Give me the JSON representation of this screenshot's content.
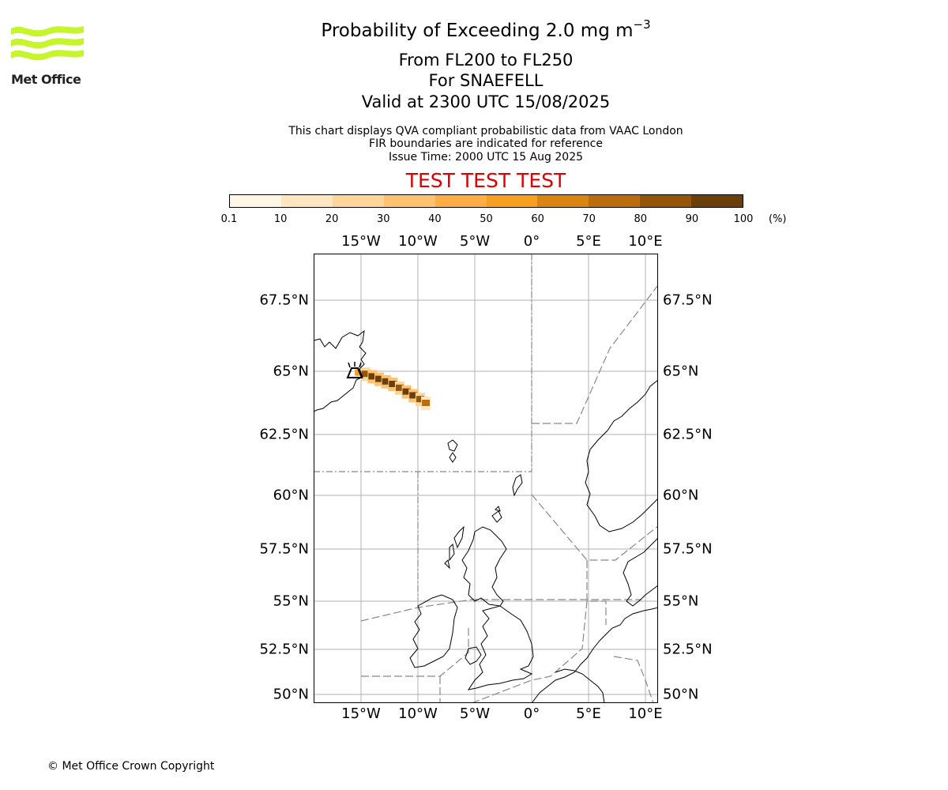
{
  "header": {
    "title_prefix": "Probability of Exceeding 2.0 mg m",
    "title_exponent": "−3",
    "flight_levels": "From FL200 to FL250",
    "volcano": "For SNAEFELL",
    "valid": "Valid at 2300 UTC 15/08/2025",
    "note_line1": "This chart displays QVA compliant probabilistic data from VAAC London",
    "note_line2": "FIR boundaries are indicated for reference",
    "note_line3": "Issue Time: 2000 UTC 15 Aug 2025",
    "test_banner": "TEST TEST TEST",
    "test_banner_color": "#dd0000"
  },
  "logo": {
    "text": "Met Office",
    "wave_color": "#c5f52a",
    "icon": "met-office-waves-icon"
  },
  "colorbar": {
    "ticks": [
      "0.1",
      "10",
      "20",
      "30",
      "40",
      "50",
      "60",
      "70",
      "80",
      "90",
      "100"
    ],
    "unit": "(%)",
    "colors": [
      "#fff6e6",
      "#ffe6c0",
      "#ffd59a",
      "#ffc270",
      "#ffae46",
      "#f79f20",
      "#d98512",
      "#b96d0c",
      "#955508",
      "#6b3f0a"
    ]
  },
  "map": {
    "lon_labels": [
      "15°W",
      "10°W",
      "5°W",
      "0°",
      "5°E",
      "10°E"
    ],
    "lat_labels": [
      "67.5°N",
      "65°N",
      "62.5°N",
      "60°N",
      "57.5°N",
      "55°N",
      "52.5°N",
      "50°N"
    ],
    "volcano_icon": "volcano-icon",
    "plume_cells": [
      {
        "lon": -15.2,
        "lat": 64.95,
        "level": 5
      },
      {
        "lon": -14.6,
        "lat": 64.9,
        "level": 8
      },
      {
        "lon": -14.0,
        "lat": 64.8,
        "level": 9
      },
      {
        "lon": -13.4,
        "lat": 64.7,
        "level": 9
      },
      {
        "lon": -12.8,
        "lat": 64.6,
        "level": 9
      },
      {
        "lon": -12.2,
        "lat": 64.5,
        "level": 9
      },
      {
        "lon": -11.6,
        "lat": 64.35,
        "level": 8
      },
      {
        "lon": -11.0,
        "lat": 64.2,
        "level": 9
      },
      {
        "lon": -10.4,
        "lat": 64.05,
        "level": 9
      },
      {
        "lon": -9.8,
        "lat": 63.9,
        "level": 8
      },
      {
        "lon": -9.3,
        "lat": 63.75,
        "level": 7
      }
    ]
  },
  "footer": {
    "copyright": "© Met Office Crown Copyright"
  }
}
